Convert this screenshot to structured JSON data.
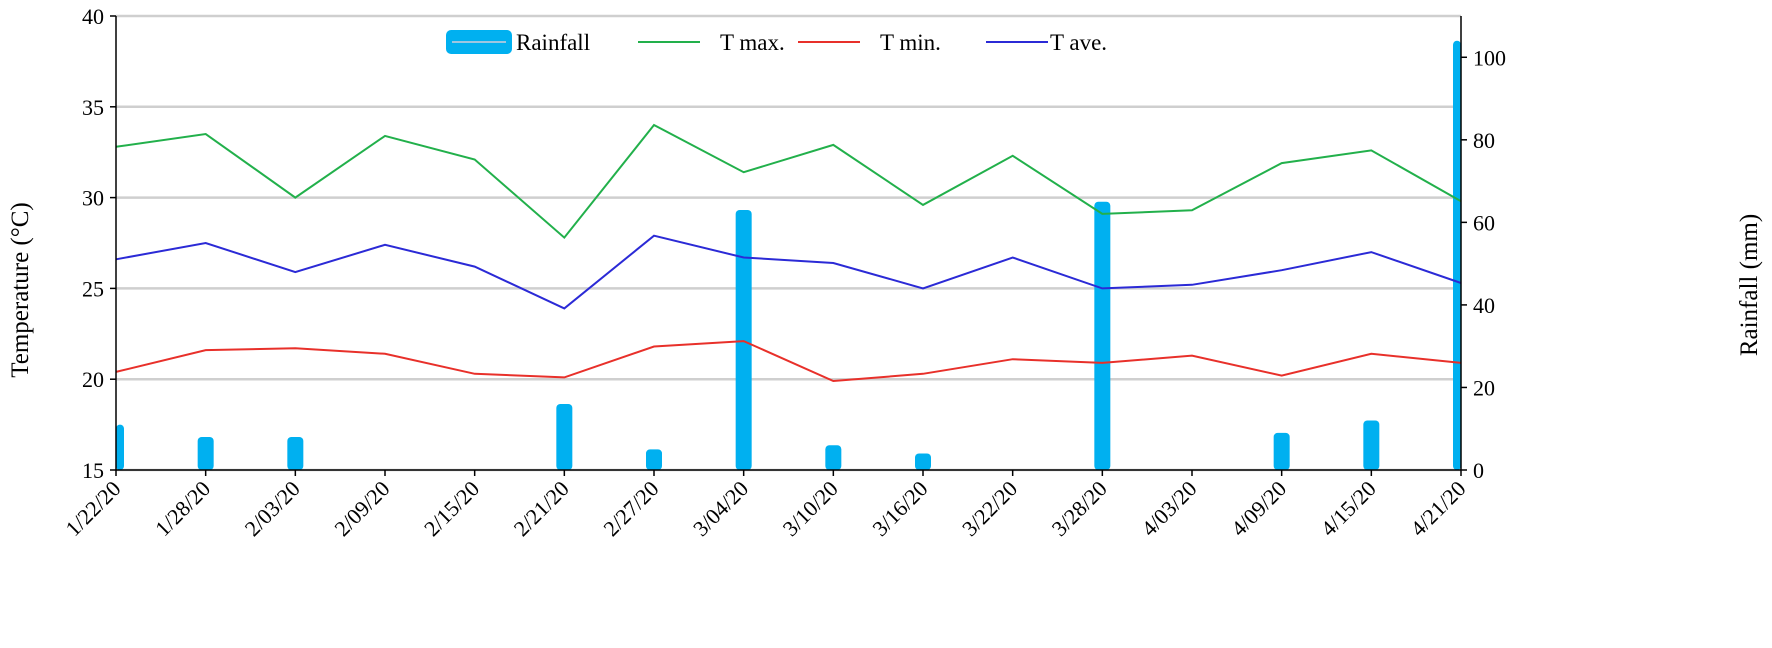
{
  "chart_data": {
    "type": "line",
    "x": [
      "1/22/20",
      "1/28/20",
      "2/03/20",
      "2/09/20",
      "2/15/20",
      "2/21/20",
      "2/27/20",
      "3/04/20",
      "3/10/20",
      "3/16/20",
      "3/22/20",
      "3/28/20",
      "4/03/20",
      "4/09/20",
      "4/15/20",
      "4/21/20"
    ],
    "ylabel": "Temperature (°C)",
    "ylabel2": "Rainfall (mm)",
    "ylim": [
      15,
      40
    ],
    "ylim2": [
      0,
      110
    ],
    "yticks": [
      15,
      20,
      25,
      30,
      35,
      40
    ],
    "yticks2": [
      0,
      20,
      40,
      60,
      80,
      100
    ],
    "grid": true,
    "legend_position": "top-center",
    "series": [
      {
        "name": "Rainfall",
        "type": "bar",
        "axis": "right",
        "color": "#00b0f0",
        "values": [
          11,
          8,
          8,
          0,
          0,
          16,
          5,
          63,
          6,
          4,
          0,
          65,
          0,
          9,
          12,
          104
        ]
      },
      {
        "name": "T max.",
        "type": "line",
        "axis": "left",
        "color": "#22b04b",
        "values": [
          32.8,
          33.5,
          30.0,
          33.4,
          32.1,
          27.8,
          34.0,
          31.4,
          32.9,
          29.6,
          32.3,
          29.1,
          29.3,
          31.9,
          32.6,
          29.8
        ]
      },
      {
        "name": "T min.",
        "type": "line",
        "axis": "left",
        "color": "#e8302a",
        "values": [
          20.4,
          21.6,
          21.7,
          21.4,
          20.3,
          20.1,
          21.8,
          22.1,
          19.9,
          20.3,
          21.1,
          20.9,
          21.3,
          20.2,
          21.4,
          20.9
        ]
      },
      {
        "name": "T ave.",
        "type": "line",
        "axis": "left",
        "color": "#2b2ad6",
        "values": [
          26.6,
          27.5,
          25.9,
          27.4,
          26.2,
          23.9,
          27.9,
          26.7,
          26.4,
          25.0,
          26.7,
          25.0,
          25.2,
          26.0,
          27.0,
          25.3
        ]
      }
    ]
  }
}
